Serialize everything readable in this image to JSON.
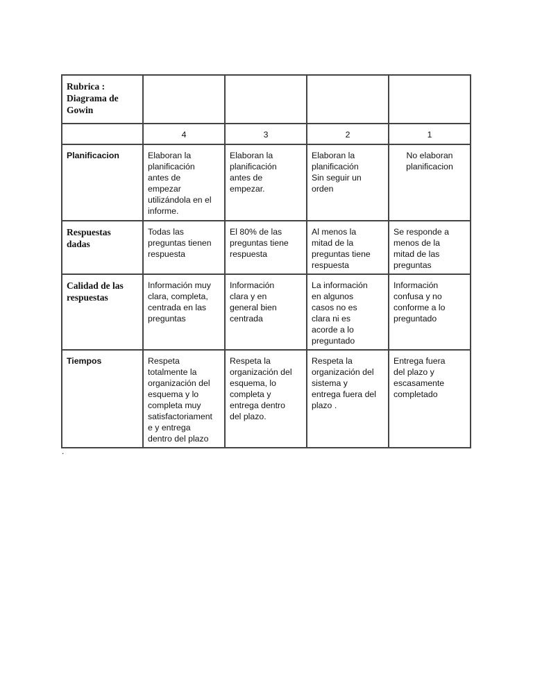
{
  "title": "Rubrica :\nDiagrama de\nGowin",
  "scores": [
    "4",
    "3",
    "2",
    "1"
  ],
  "rows": [
    {
      "criterion": "Planificacion",
      "cells": [
        "Elaboran la\nplanificación\nantes de\nempezar\nutilizándola en el\ninforme.",
        "Elaboran la\nplanificación\nantes de\nempezar.",
        "Elaboran la\nplanificación\nSin seguir un\norden",
        "No elaboran\nplanificacion"
      ]
    },
    {
      "criterion": "Respuestas\ndadas",
      "cells": [
        "Todas las\npreguntas tienen\nrespuesta",
        "El 80% de las\npreguntas tiene\nrespuesta",
        "Al menos la\nmitad de la\npreguntas tiene\nrespuesta",
        "Se responde a\nmenos de la\nmitad de las\npreguntas"
      ]
    },
    {
      "criterion": "Calidad de las\nrespuestas",
      "cells": [
        "Información muy\nclara, completa,\ncentrada en las\npreguntas",
        "Información\nclara y en\ngeneral bien\ncentrada",
        "La información\nen algunos\ncasos no es\nclara ni es\nacorde a lo\npreguntado",
        "Información\nconfusa y no\nconforme a lo\npreguntado"
      ]
    },
    {
      "criterion": "Tiempos",
      "cells": [
        "Respeta\ntotalmente la\norganización del\nesquema y lo\ncompleta muy\nsatisfactoriament\ne y entrega\ndentro del plazo",
        "Respeta la\norganización del\nesquema, lo\ncompleta y\nentrega dentro\ndel plazo.",
        "Respeta la\norganización del\nsistema y\nentrega fuera del\nplazo .",
        "Entrega fuera\ndel plazo y\nescasamente\ncompletado"
      ]
    }
  ],
  "footnote": "."
}
